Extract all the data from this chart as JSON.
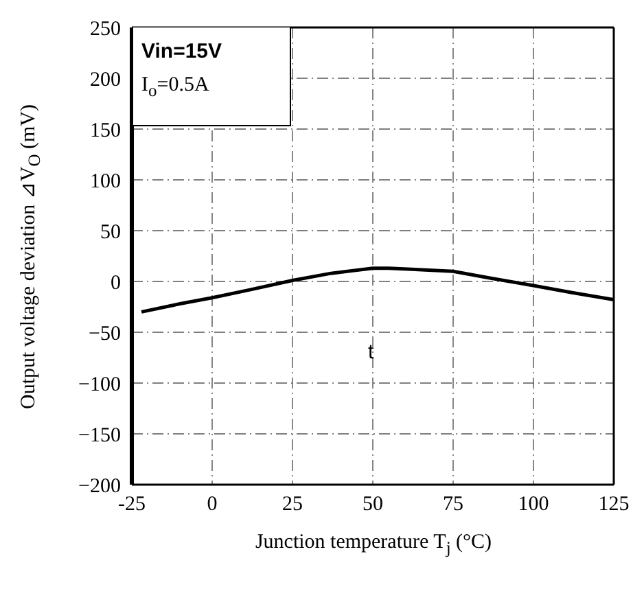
{
  "chart_data": {
    "type": "line",
    "xlabel": "Junction temperature T$_{j}$ (°C)",
    "ylabel": "Output voltage deviation ⊿V$_{O}$ (mV)",
    "annotations": [
      "Vin=15V",
      "I$_{o}$=0.5A",
      "t"
    ],
    "x": [
      -22,
      -10,
      0,
      12,
      25,
      37,
      50,
      55,
      62,
      75,
      87,
      100,
      112,
      125
    ],
    "series": [
      {
        "color": "#000000",
        "values": [
          -30,
          -22,
          -16,
          -8,
          1,
          8,
          13,
          13,
          12,
          10,
          3,
          -4,
          -11,
          -18
        ]
      }
    ],
    "xlim": [
      -25,
      125
    ],
    "xticks": [
      -25,
      0,
      25,
      50,
      75,
      100,
      125
    ],
    "ylim": [
      -200,
      250
    ],
    "yticks": [
      -200,
      -150,
      -100,
      -50,
      0,
      50,
      100,
      150,
      200,
      250
    ],
    "grid": true,
    "marker": "none",
    "line_style": "solid"
  }
}
